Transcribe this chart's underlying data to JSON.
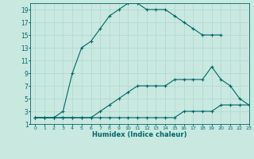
{
  "xlabel": "Humidex (Indice chaleur)",
  "bg_color": "#c8e8e0",
  "grid_color": "#b0d8d0",
  "line_color": "#006868",
  "xlim": [
    -0.5,
    23
  ],
  "ylim": [
    1,
    20
  ],
  "xticks": [
    0,
    1,
    2,
    3,
    4,
    5,
    6,
    7,
    8,
    9,
    10,
    11,
    12,
    13,
    14,
    15,
    16,
    17,
    18,
    19,
    20,
    21,
    22,
    23
  ],
  "yticks": [
    1,
    3,
    5,
    7,
    9,
    11,
    13,
    15,
    17,
    19
  ],
  "line1_x": [
    0,
    1,
    2,
    3,
    4,
    5,
    6,
    7,
    8,
    9,
    10,
    11,
    12,
    13,
    14,
    15,
    16,
    17,
    18,
    19,
    20
  ],
  "line1_y": [
    2,
    2,
    2,
    3,
    9,
    13,
    14,
    16,
    18,
    19,
    20,
    20,
    19,
    19,
    19,
    18,
    17,
    16,
    15,
    15,
    15
  ],
  "line2_x": [
    0,
    1,
    2,
    3,
    4,
    5,
    6,
    7,
    8,
    9,
    10,
    11,
    12,
    13,
    14,
    15,
    16,
    17,
    18,
    19,
    20,
    21,
    22,
    23
  ],
  "line2_y": [
    2,
    2,
    2,
    2,
    2,
    2,
    2,
    2,
    2,
    2,
    2,
    2,
    2,
    2,
    2,
    2,
    3,
    3,
    3,
    3,
    4,
    4,
    4,
    4
  ],
  "line3_x": [
    0,
    1,
    2,
    3,
    4,
    5,
    6,
    7,
    8,
    9,
    10,
    11,
    12,
    13,
    14,
    15,
    16,
    17,
    18,
    19,
    20,
    21,
    22,
    23
  ],
  "line3_y": [
    2,
    2,
    2,
    2,
    2,
    2,
    2,
    3,
    4,
    5,
    6,
    7,
    7,
    7,
    7,
    8,
    8,
    8,
    8,
    10,
    8,
    7,
    5,
    4
  ]
}
